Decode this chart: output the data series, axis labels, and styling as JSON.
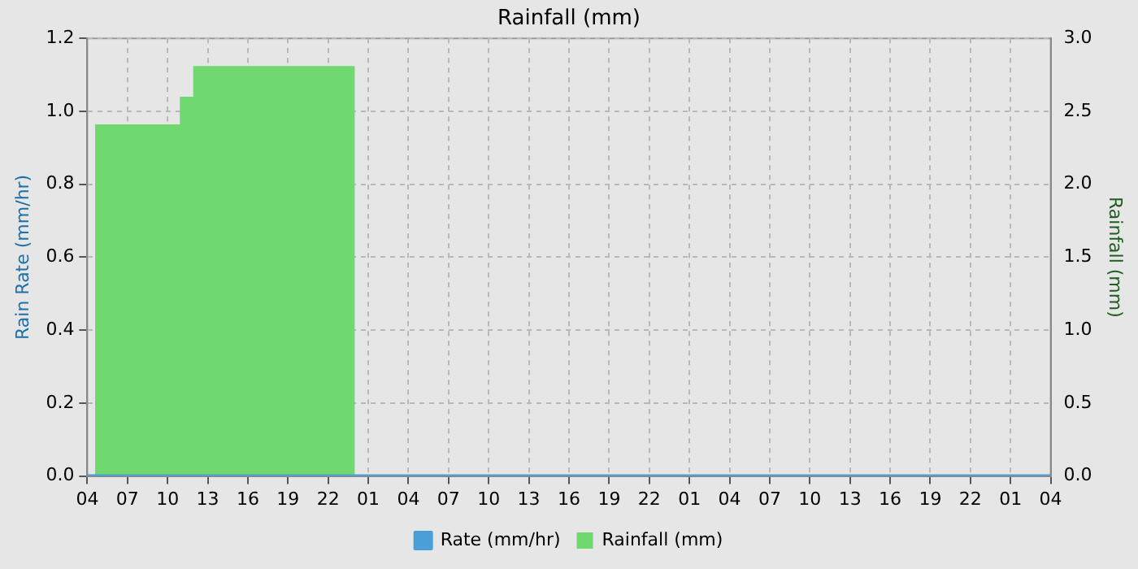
{
  "chart_data": {
    "type": "line",
    "title": "Rainfall (mm)",
    "ylabel": "Rain Rate (mm/hr)",
    "y2label": "Rainfall (mm)",
    "xlim": [
      "--01-01T04:00",
      "--01-04T04:00"
    ],
    "xticks": [
      {
        "value": "--01-01T04:00",
        "label": "04"
      },
      {
        "value": "--01-01T07:00",
        "label": "07"
      },
      {
        "value": "--01-01T10:00",
        "label": "10"
      },
      {
        "value": "--01-01T13:00",
        "label": "13"
      },
      {
        "value": "--01-01T16:00",
        "label": "16"
      },
      {
        "value": "--01-01T19:00",
        "label": "19"
      },
      {
        "value": "--01-01T22:00",
        "label": "22"
      },
      {
        "value": "--01-02T01:00",
        "label": "01"
      },
      {
        "value": "--01-02T04:00",
        "label": "04"
      },
      {
        "value": "--01-02T07:00",
        "label": "07"
      },
      {
        "value": "--01-02T10:00",
        "label": "10"
      },
      {
        "value": "--01-02T13:00",
        "label": "13"
      },
      {
        "value": "--01-02T16:00",
        "label": "16"
      },
      {
        "value": "--01-02T19:00",
        "label": "19"
      },
      {
        "value": "--01-02T22:00",
        "label": "22"
      },
      {
        "value": "--01-03T01:00",
        "label": "01"
      },
      {
        "value": "--01-03T04:00",
        "label": "04"
      },
      {
        "value": "--01-03T07:00",
        "label": "07"
      },
      {
        "value": "--01-03T10:00",
        "label": "10"
      },
      {
        "value": "--01-03T13:00",
        "label": "13"
      },
      {
        "value": "--01-03T16:00",
        "label": "16"
      },
      {
        "value": "--01-03T19:00",
        "label": "19"
      },
      {
        "value": "--01-03T22:00",
        "label": "22"
      },
      {
        "value": "--01-04T01:00",
        "label": "01"
      },
      {
        "value": "--01-04T04:00",
        "label": "04"
      }
    ],
    "ylim": [
      0,
      1.2
    ],
    "yticks": [
      {
        "value": 0,
        "label": "0.0"
      },
      {
        "value": 0.2,
        "label": "0.2"
      },
      {
        "value": 0.4,
        "label": "0.4"
      },
      {
        "value": 0.6,
        "label": "0.6"
      },
      {
        "value": 0.8,
        "label": "0.8"
      },
      {
        "value": 1,
        "label": "1.0"
      },
      {
        "value": 1.2,
        "label": "1.2"
      }
    ],
    "y2lim": [
      0,
      3
    ],
    "y2ticks": [
      {
        "value": 0,
        "label": "0.0"
      },
      {
        "value": 0.5,
        "label": "0.5"
      },
      {
        "value": 1,
        "label": "1.0"
      },
      {
        "value": 1.5,
        "label": "1.5"
      },
      {
        "value": 2,
        "label": "2.0"
      },
      {
        "value": 2.5,
        "label": "2.5"
      },
      {
        "value": 3,
        "label": "3.0"
      }
    ],
    "grid": true,
    "legend": "bottom",
    "series": [
      {
        "name": "Rate (mm/hr)",
        "color": "#4a9fd8",
        "x": [
          "--01-01T04:00",
          "--01-04T04:00"
        ],
        "values": [
          0,
          0
        ]
      },
      {
        "name": "Rainfall (mm)",
        "type": "area",
        "axis": "y2",
        "color": "#70d870",
        "x": [
          "--01-01T04:35",
          "--01-01T04:35",
          "--01-01T10:55",
          "--01-01T10:55",
          "--01-01T11:55",
          "--01-01T11:55",
          "--01-02T00:00",
          "--01-02T00:00"
        ],
        "values": [
          0,
          2.41,
          2.41,
          2.6,
          2.6,
          2.81,
          2.81,
          0
        ]
      }
    ]
  }
}
